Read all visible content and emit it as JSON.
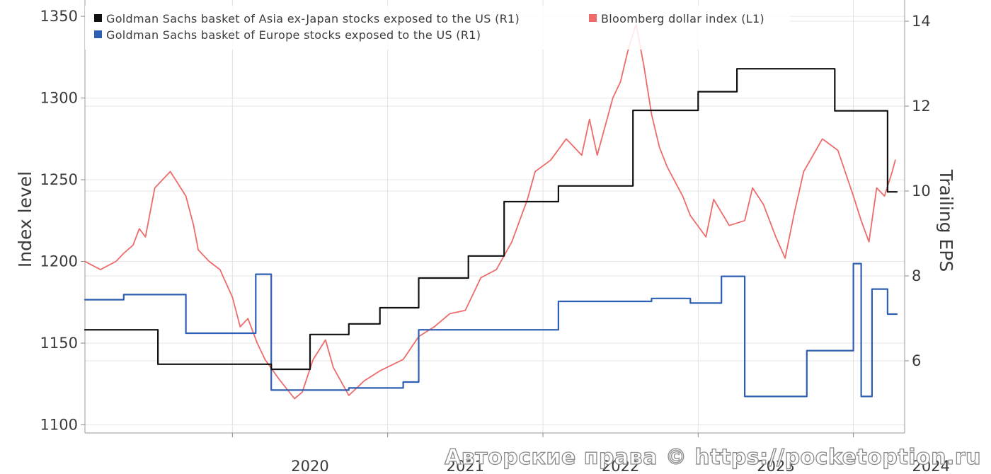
{
  "chart_data": {
    "type": "line",
    "title": "",
    "xlabel": "",
    "ylabel_left": "Index level",
    "ylabel_right": "Trailing EPS",
    "x_tick_labels": [
      "2020",
      "2021",
      "2022",
      "2023",
      "2024"
    ],
    "x_range": [
      2019.05,
      2024.33
    ],
    "ylim_left": [
      1095,
      1360
    ],
    "ylim_right": [
      4.3,
      14.5
    ],
    "left_ticks": [
      1100,
      1150,
      1200,
      1250,
      1300,
      1350
    ],
    "right_ticks": [
      6,
      8,
      10,
      12,
      14
    ],
    "grid": true,
    "legend_position": "top-left",
    "legend": [
      {
        "label": "Goldman Sachs basket of Asia ex-Japan stocks exposed to the US (R1)",
        "color": "#111111"
      },
      {
        "label": "Bloomberg dollar index (L1)",
        "color": "#ee6b6b"
      },
      {
        "label": "Goldman Sachs basket of Europe stocks exposed to the US (R1)",
        "color": "#2f5fb3"
      }
    ],
    "series": [
      {
        "name": "Goldman Sachs basket of Asia ex-Japan stocks exposed to the US (R1)",
        "axis": "right",
        "step": true,
        "color": "#111111",
        "x": [
          2019.05,
          2019.37,
          2019.52,
          2020.25,
          2020.5,
          2020.75,
          2020.95,
          2021.2,
          2021.52,
          2021.75,
          2022.1,
          2022.58,
          2023.0,
          2023.25,
          2023.88,
          2024.22
        ],
        "y": [
          6.73,
          6.73,
          5.92,
          5.8,
          6.62,
          6.87,
          7.25,
          7.95,
          8.47,
          9.75,
          10.12,
          11.9,
          12.34,
          12.88,
          11.89,
          9.98
        ]
      },
      {
        "name": "Goldman Sachs basket of Europe stocks exposed to the US (R1)",
        "axis": "right",
        "step": true,
        "color": "#2f5fb3",
        "x": [
          2019.05,
          2019.3,
          2019.7,
          2019.9,
          2020.15,
          2020.25,
          2020.75,
          2021.1,
          2021.2,
          2022.1,
          2022.7,
          2022.95,
          2023.15,
          2023.3,
          2023.45,
          2023.7,
          2023.9,
          2024.0,
          2024.05,
          2024.12,
          2024.22
        ],
        "y": [
          7.44,
          7.56,
          6.65,
          6.65,
          8.04,
          5.31,
          5.36,
          5.5,
          6.73,
          7.4,
          7.47,
          7.36,
          7.99,
          5.16,
          5.16,
          6.24,
          6.24,
          8.29,
          5.16,
          7.69,
          7.1
        ]
      },
      {
        "name": "Bloomberg dollar index (L1)",
        "axis": "left",
        "step": false,
        "color": "#ee6b6b",
        "x": [
          2019.05,
          2019.15,
          2019.25,
          2019.3,
          2019.36,
          2019.4,
          2019.44,
          2019.47,
          2019.5,
          2019.6,
          2019.7,
          2019.75,
          2019.78,
          2019.85,
          2019.92,
          2020.0,
          2020.05,
          2020.1,
          2020.16,
          2020.21,
          2020.3,
          2020.4,
          2020.45,
          2020.52,
          2020.6,
          2020.65,
          2020.75,
          2020.85,
          2020.95,
          2021.1,
          2021.2,
          2021.3,
          2021.4,
          2021.5,
          2021.55,
          2021.6,
          2021.7,
          2021.8,
          2021.9,
          2021.95,
          2022.05,
          2022.15,
          2022.25,
          2022.3,
          2022.35,
          2022.45,
          2022.5,
          2022.55,
          2022.6,
          2022.65,
          2022.7,
          2022.75,
          2022.8,
          2022.9,
          2022.95,
          2023.05,
          2023.1,
          2023.2,
          2023.3,
          2023.35,
          2023.42,
          2023.5,
          2023.56,
          2023.62,
          2023.68,
          2023.74,
          2023.8,
          2023.9,
          2024.0,
          2024.05,
          2024.1,
          2024.15,
          2024.2,
          2024.25,
          2024.27
        ],
        "y": [
          1200,
          1195,
          1200,
          1205,
          1210,
          1220,
          1215,
          1230,
          1245,
          1255,
          1240,
          1222,
          1207,
          1200,
          1195,
          1178,
          1160,
          1165,
          1150,
          1140,
          1128,
          1116,
          1120,
          1140,
          1152,
          1135,
          1118,
          1127,
          1133,
          1140,
          1154,
          1160,
          1168,
          1170,
          1180,
          1190,
          1195,
          1212,
          1238,
          1255,
          1262,
          1275,
          1265,
          1287,
          1265,
          1300,
          1310,
          1330,
          1345,
          1320,
          1290,
          1270,
          1258,
          1240,
          1228,
          1215,
          1238,
          1222,
          1225,
          1245,
          1235,
          1215,
          1202,
          1230,
          1255,
          1265,
          1275,
          1268,
          1240,
          1225,
          1212,
          1245,
          1240,
          1255,
          1262
        ]
      }
    ]
  },
  "watermark": "Авторские права © https://pocketoption.ru"
}
